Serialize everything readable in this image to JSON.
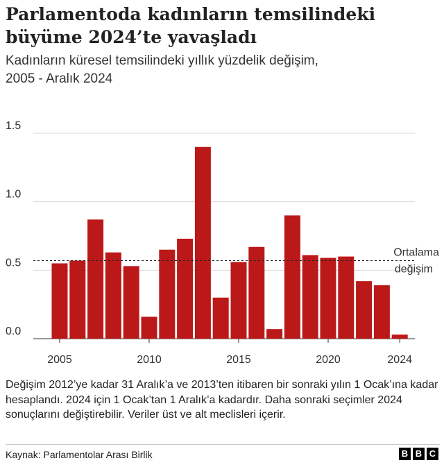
{
  "title": "Parlamentoda kadınların temsilindeki\nbüyüme 2024’te yavaşladı",
  "subtitle": "Kadınların küresel temsilindeki yıllık yüzdelik değişim,\n2005 - Aralık 2024",
  "note": "Değişim 2012’ye kadar 31 Aralık’a ve 2013’ten itibaren bir sonraki yılın 1 Ocak’ına kadar hesaplandı. 2024 için 1 Ocak’tan 1 Aralık’a kadardır. Daha sonraki seçimler 2024 sonuçlarını değiştirebilir. Veriler üst ve alt meclisleri içerir.",
  "source": "Kaynak: Parlamentolar Arası Birlik",
  "logo": [
    "B",
    "B",
    "C"
  ],
  "chart_data": {
    "type": "bar",
    "title": "Parlamentoda kadınların temsilindeki büyüme 2024’te yavaşladı",
    "subtitle": "Kadınların küresel temsilindeki yıllık yüzdelik değişim, 2005 - Aralık 2024",
    "x": [
      2005,
      2006,
      2007,
      2008,
      2009,
      2010,
      2011,
      2012,
      2013,
      2014,
      2015,
      2016,
      2017,
      2018,
      2019,
      2020,
      2021,
      2022,
      2023,
      2024
    ],
    "values": [
      0.55,
      0.57,
      0.87,
      0.63,
      0.53,
      0.16,
      0.65,
      0.73,
      1.4,
      0.3,
      0.56,
      0.67,
      0.07,
      0.9,
      0.61,
      0.59,
      0.6,
      0.42,
      0.39,
      0.03
    ],
    "x_ticks": [
      "2005",
      "2010",
      "2015",
      "2020",
      "2024"
    ],
    "y_ticks": [
      "0.0",
      "0.5",
      "1.0",
      "1.5"
    ],
    "ylim": [
      0,
      1.5
    ],
    "grid": "horizontal",
    "average": {
      "value": 0.57,
      "label_line1": "Ortalama",
      "label_line2": "değişim"
    },
    "colors": {
      "bar": "#bb1919",
      "grid": "#d9d9d9",
      "axis": "#333333"
    }
  }
}
